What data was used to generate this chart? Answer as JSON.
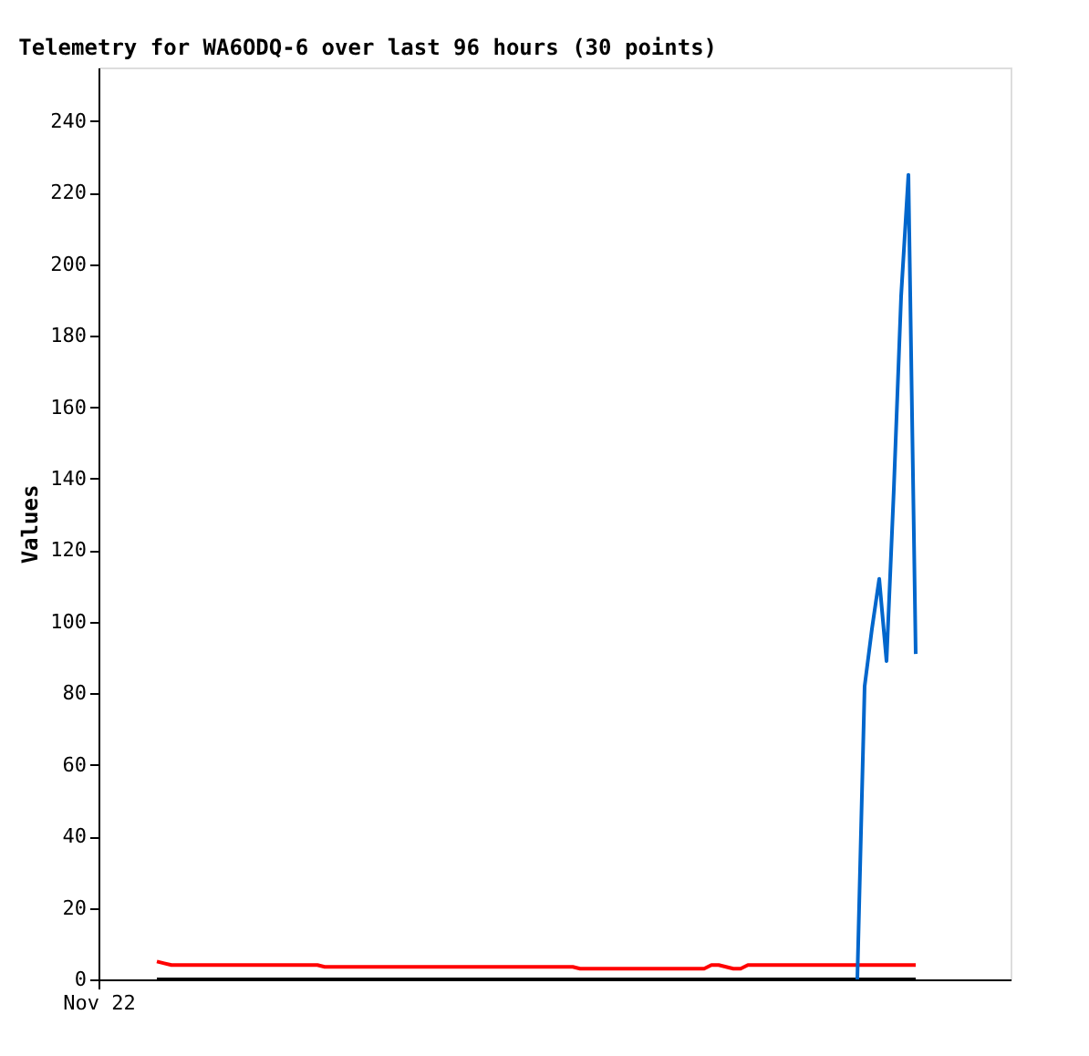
{
  "chart_data": {
    "type": "line",
    "title": "Telemetry for WA6ODQ-6 over last 96 hours (30 points)",
    "ylabel": "Values",
    "categories": [
      "Nov 22",
      null,
      null,
      null,
      null,
      null,
      null,
      null,
      null,
      null,
      null,
      null,
      null,
      null,
      null,
      null,
      null,
      null,
      null,
      null,
      null,
      null,
      null,
      null,
      null,
      null,
      null,
      null,
      null,
      null,
      null,
      null,
      null,
      null,
      null,
      null,
      null,
      null,
      null,
      null,
      null,
      null,
      null,
      null,
      null,
      null,
      null,
      null,
      null,
      null,
      null,
      null,
      null,
      null,
      null,
      null,
      null,
      null,
      null,
      null,
      null,
      null,
      null,
      null,
      null,
      null,
      null,
      null,
      null,
      null,
      null,
      null,
      null,
      null,
      null,
      null,
      null,
      null,
      null,
      null,
      null,
      null,
      null,
      null,
      null,
      null,
      null,
      null,
      null,
      null,
      null,
      null,
      null,
      null,
      null,
      null,
      null,
      null,
      null,
      null,
      null,
      null,
      null,
      null,
      null,
      null,
      null,
      null,
      null,
      null,
      null,
      null,
      null,
      null,
      null,
      null,
      null,
      null,
      null,
      null,
      null,
      null,
      null,
      null,
      null,
      null
    ],
    "ylim": [
      0,
      255
    ],
    "yticks": [
      0,
      20,
      40,
      60,
      80,
      100,
      120,
      140,
      160,
      180,
      200,
      220,
      240
    ],
    "grid": false,
    "legend": false,
    "marker": "none",
    "line_style": "solid",
    "series": [
      {
        "color": "#000000",
        "values": [
          null,
          null,
          null,
          null,
          null,
          null,
          null,
          null,
          0,
          0,
          0,
          0,
          0,
          0,
          0,
          0,
          0,
          0,
          0,
          0,
          0,
          0,
          0,
          0,
          0,
          0,
          0,
          0,
          0,
          0,
          0,
          0,
          0,
          0,
          0,
          0,
          0,
          0,
          0,
          0,
          0,
          0,
          0,
          0,
          0,
          0,
          0,
          0,
          0,
          0,
          0,
          0,
          0,
          0,
          0,
          0,
          0,
          0,
          0,
          0,
          0,
          0,
          0,
          0,
          0,
          0,
          0,
          0,
          0,
          0,
          0,
          0,
          0,
          0,
          0,
          0,
          0,
          0,
          0,
          0,
          0,
          0,
          0,
          0,
          0,
          0,
          0,
          0,
          0,
          0,
          0,
          0,
          0,
          0,
          0,
          0,
          0,
          0,
          0,
          0,
          0,
          0,
          0,
          0,
          0,
          0,
          0,
          0,
          0,
          0,
          0,
          0,
          0,
          null,
          null,
          null,
          null,
          null,
          null,
          null,
          null,
          null,
          null,
          null,
          null,
          null
        ]
      },
      {
        "color": "#ff0000",
        "values": [
          null,
          null,
          null,
          null,
          null,
          null,
          null,
          null,
          5,
          4.5,
          4,
          4,
          4,
          4,
          4,
          4,
          4,
          4,
          4,
          4,
          4,
          4,
          4,
          4,
          4,
          4,
          4,
          4,
          4,
          4,
          4,
          3.5,
          3.5,
          3.5,
          3.5,
          3.5,
          3.5,
          3.5,
          3.5,
          3.5,
          3.5,
          3.5,
          3.5,
          3.5,
          3.5,
          3.5,
          3.5,
          3.5,
          3.5,
          3.5,
          3.5,
          3.5,
          3.5,
          3.5,
          3.5,
          3.5,
          3.5,
          3.5,
          3.5,
          3.5,
          3.5,
          3.5,
          3.5,
          3.5,
          3.5,
          3.5,
          3,
          3,
          3,
          3,
          3,
          3,
          3,
          3,
          3,
          3,
          3,
          3,
          3,
          3,
          3,
          3,
          3,
          3,
          4,
          4,
          3.5,
          3,
          3,
          4,
          4,
          4,
          4,
          4,
          4,
          4,
          4,
          4,
          4,
          4,
          4,
          4,
          4,
          4,
          4,
          4,
          4,
          4,
          4,
          4,
          4,
          4,
          4,
          null,
          null,
          null,
          null,
          null,
          null,
          null,
          null,
          null,
          null,
          null,
          null,
          null
        ]
      },
      {
        "color": "#0066cc",
        "values": [
          null,
          null,
          null,
          null,
          null,
          null,
          null,
          null,
          null,
          null,
          null,
          null,
          null,
          null,
          null,
          null,
          null,
          null,
          null,
          null,
          null,
          null,
          null,
          null,
          null,
          null,
          null,
          null,
          null,
          null,
          null,
          null,
          null,
          null,
          null,
          null,
          null,
          null,
          null,
          null,
          null,
          null,
          null,
          null,
          null,
          null,
          null,
          null,
          null,
          null,
          null,
          null,
          null,
          null,
          null,
          null,
          null,
          null,
          null,
          null,
          null,
          null,
          null,
          null,
          null,
          null,
          null,
          null,
          null,
          null,
          null,
          null,
          null,
          null,
          null,
          null,
          null,
          null,
          null,
          null,
          null,
          null,
          null,
          null,
          null,
          null,
          null,
          null,
          null,
          null,
          null,
          null,
          null,
          null,
          null,
          null,
          null,
          null,
          null,
          null,
          null,
          null,
          null,
          null,
          0,
          82,
          98,
          112,
          89,
          137,
          191,
          225,
          91,
          null,
          null,
          null,
          null,
          null,
          null,
          null,
          null,
          null,
          null,
          null,
          null,
          null
        ]
      }
    ]
  }
}
